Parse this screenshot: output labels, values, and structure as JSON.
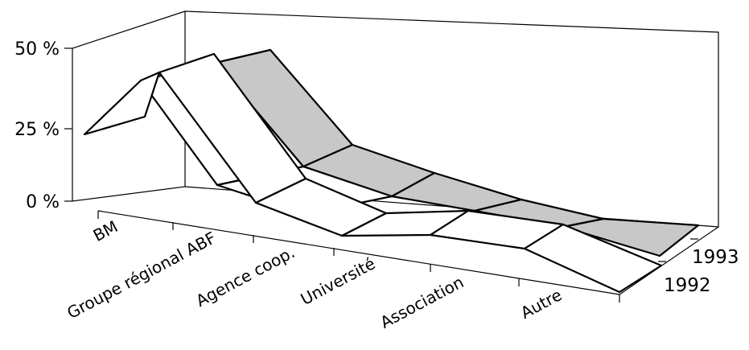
{
  "chart_data": {
    "type": "area",
    "categories": [
      "BM",
      "Groupe régional ABF",
      "Agence coop.",
      "Université",
      "Association",
      "Autre"
    ],
    "series": [
      {
        "name": "1992",
        "values": [
          22,
          45,
          8,
          9,
          8,
          6
        ],
        "color": "#ffffff"
      },
      {
        "name": "1993",
        "values": [
          24,
          42,
          12,
          9,
          4,
          3
        ],
        "color": "#ffffff"
      },
      {
        "name": "",
        "values": [
          null,
          35,
          17,
          12,
          8,
          3
        ],
        "color": "#c8c8c8"
      }
    ],
    "yticks": [
      "0 %",
      "25 %",
      "50 %"
    ],
    "ylim": [
      0,
      50
    ],
    "grid": false
  }
}
